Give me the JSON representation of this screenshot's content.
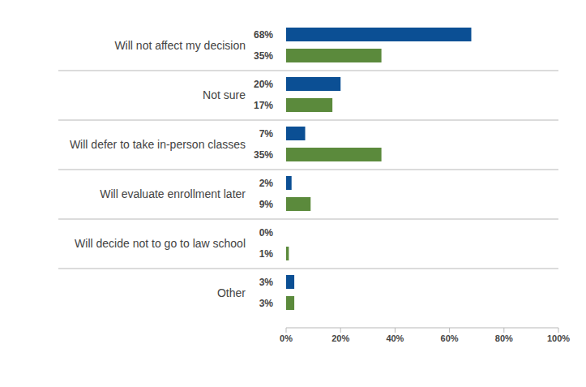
{
  "chart_data": {
    "type": "bar",
    "orientation": "horizontal",
    "data_labels": true,
    "categories": [
      "Will not affect my decision",
      "Not sure",
      "Will defer to take in-person classes",
      "Will evaluate enrollment later",
      "Will decide not to go to law school",
      "Other"
    ],
    "series": [
      {
        "color": "#0b4f94",
        "values": [
          68,
          20,
          7,
          2,
          0,
          3
        ],
        "value_labels": [
          "68%",
          "20%",
          "7%",
          "2%",
          "0%",
          "3%"
        ]
      },
      {
        "color": "#5b8a3c",
        "values": [
          35,
          17,
          35,
          9,
          1,
          3
        ],
        "value_labels": [
          "35%",
          "17%",
          "35%",
          "9%",
          "1%",
          "3%"
        ]
      }
    ],
    "xlim": [
      0,
      100
    ],
    "xticks": [
      {
        "value": 0,
        "label": "0%"
      },
      {
        "value": 20,
        "label": "20%"
      },
      {
        "value": 40,
        "label": "40%"
      },
      {
        "value": 60,
        "label": "60%"
      },
      {
        "value": 80,
        "label": "80%"
      },
      {
        "value": 100,
        "label": "100%"
      }
    ]
  }
}
